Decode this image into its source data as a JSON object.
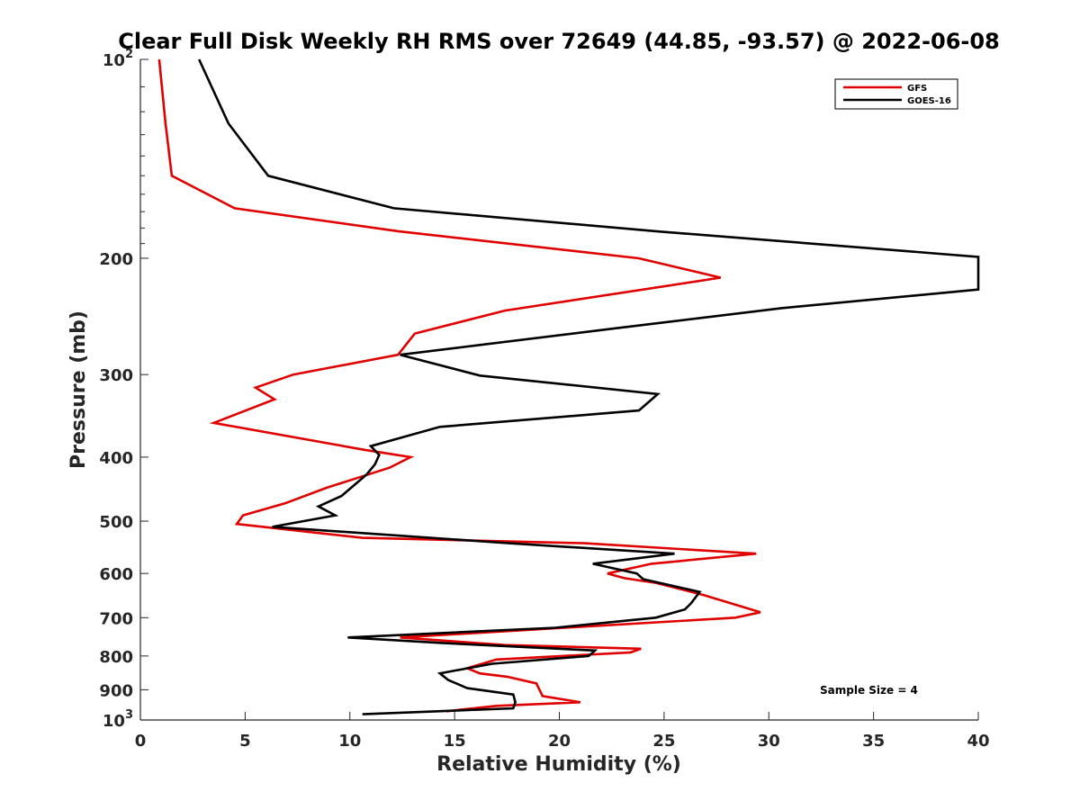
{
  "chart_data": {
    "type": "line",
    "title": "Clear Full Disk Weekly RH RMS over 72649 (44.85, -93.57) @ 2022-06-08",
    "xlabel": "Relative Humidity (%)",
    "ylabel": "Pressure (mb)",
    "xlim": [
      0,
      40
    ],
    "ylim": [
      100,
      1000
    ],
    "y_scale": "log",
    "y_reversed": true,
    "x_ticks": [
      "0",
      "5",
      "10",
      "15",
      "20",
      "25",
      "30",
      "35",
      "40"
    ],
    "y_ticks": [
      {
        "value": 100,
        "label": "10",
        "sup": "2"
      },
      {
        "value": 200,
        "label": "200",
        "sup": ""
      },
      {
        "value": 300,
        "label": "300",
        "sup": ""
      },
      {
        "value": 400,
        "label": "400",
        "sup": ""
      },
      {
        "value": 500,
        "label": "500",
        "sup": ""
      },
      {
        "value": 600,
        "label": "600",
        "sup": ""
      },
      {
        "value": 700,
        "label": "700",
        "sup": ""
      },
      {
        "value": 800,
        "label": "800",
        "sup": ""
      },
      {
        "value": 900,
        "label": "900",
        "sup": ""
      },
      {
        "value": 1000,
        "label": "10",
        "sup": "3"
      }
    ],
    "grid": false,
    "legend_position": "top-right",
    "annotation": "Sample Size = 4",
    "series": [
      {
        "name": "GFS",
        "color": "#e00000",
        "points": [
          [
            0.9,
            100
          ],
          [
            1.2,
            125
          ],
          [
            1.5,
            150
          ],
          [
            4.5,
            168
          ],
          [
            12.3,
            182
          ],
          [
            23.8,
            200
          ],
          [
            27.7,
            214
          ],
          [
            17.4,
            240
          ],
          [
            13.1,
            260
          ],
          [
            12.3,
            280
          ],
          [
            7.3,
            300
          ],
          [
            5.5,
            314
          ],
          [
            6.4,
            327
          ],
          [
            3.5,
            355
          ],
          [
            10.7,
            390
          ],
          [
            12.9,
            400
          ],
          [
            11.9,
            415
          ],
          [
            8.9,
            445
          ],
          [
            6.9,
            470
          ],
          [
            4.9,
            490
          ],
          [
            4.6,
            505
          ],
          [
            10.6,
            530
          ],
          [
            21.2,
            540
          ],
          [
            29.4,
            560
          ],
          [
            24.4,
            580
          ],
          [
            22.3,
            600
          ],
          [
            23.1,
            610
          ],
          [
            24.6,
            620
          ],
          [
            26.9,
            647
          ],
          [
            28.6,
            672
          ],
          [
            29.6,
            687
          ],
          [
            28.4,
            700
          ],
          [
            12.4,
            750
          ],
          [
            17.4,
            770
          ],
          [
            23.9,
            780
          ],
          [
            23.4,
            790
          ],
          [
            17.0,
            810
          ],
          [
            15.6,
            835
          ],
          [
            16.2,
            850
          ],
          [
            17.5,
            860
          ],
          [
            18.9,
            880
          ],
          [
            19.2,
            920
          ],
          [
            21.0,
            940
          ],
          [
            17.0,
            952
          ],
          [
            14.6,
            970
          ]
        ]
      },
      {
        "name": "GOES-16",
        "color": "#000000",
        "points": [
          [
            2.8,
            100
          ],
          [
            4.2,
            125
          ],
          [
            6.1,
            150
          ],
          [
            12.1,
            168
          ],
          [
            24.6,
            182
          ],
          [
            40.0,
            199
          ],
          [
            40.0,
            223
          ],
          [
            30.6,
            238
          ],
          [
            22.8,
            255
          ],
          [
            12.4,
            280
          ],
          [
            16.2,
            301
          ],
          [
            24.7,
            321
          ],
          [
            23.8,
            340
          ],
          [
            14.3,
            360
          ],
          [
            11.0,
            385
          ],
          [
            11.4,
            397
          ],
          [
            11.2,
            410
          ],
          [
            10.8,
            425
          ],
          [
            9.6,
            458
          ],
          [
            8.5,
            475
          ],
          [
            9.3,
            490
          ],
          [
            6.3,
            510
          ],
          [
            17.6,
            540
          ],
          [
            25.5,
            560
          ],
          [
            21.6,
            580
          ],
          [
            23.7,
            600
          ],
          [
            24.0,
            612
          ],
          [
            26.7,
            640
          ],
          [
            26.3,
            665
          ],
          [
            26.0,
            680
          ],
          [
            24.6,
            700
          ],
          [
            19.8,
            725
          ],
          [
            9.9,
            750
          ],
          [
            14.5,
            765
          ],
          [
            21.7,
            785
          ],
          [
            21.4,
            800
          ],
          [
            16.8,
            822
          ],
          [
            14.3,
            850
          ],
          [
            14.7,
            870
          ],
          [
            15.6,
            895
          ],
          [
            17.8,
            915
          ],
          [
            17.9,
            940
          ],
          [
            17.8,
            960
          ],
          [
            10.6,
            980
          ]
        ]
      }
    ]
  }
}
